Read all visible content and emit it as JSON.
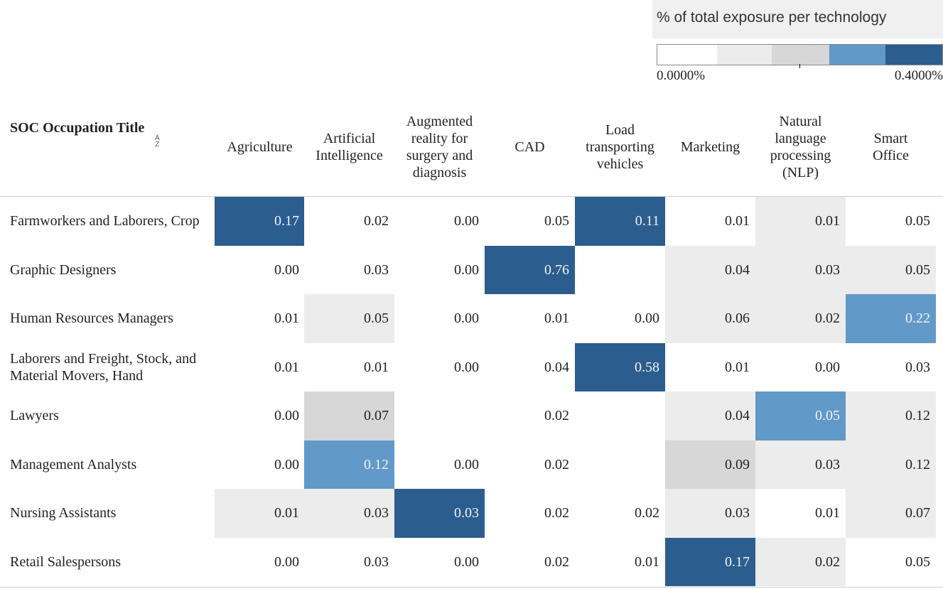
{
  "legend": {
    "title": "% of total exposure per technology",
    "min_label": "0.0000%",
    "max_label": "0.4000%",
    "colors": [
      "#ffffff",
      "#ececec",
      "#d7d7d7",
      "#6199c9",
      "#2b5d8f"
    ]
  },
  "header": {
    "soc_title": "SOC Occupation Title",
    "sort_icon": "sort-az-icon"
  },
  "chart_data": {
    "type": "heatmap",
    "title": "% of total exposure per technology",
    "columns": [
      "Agriculture",
      "Artificial Intelligence",
      "Augmented reality for surgery and diagnosis",
      "CAD",
      "Load transporting vehicles",
      "Marketing",
      "Natural language processing (NLP)",
      "Smart Office"
    ],
    "column_lines": [
      [
        "Agriculture"
      ],
      [
        "Artificial",
        "Intelligence"
      ],
      [
        "Augmented",
        "reality for",
        "surgery and",
        "diagnosis"
      ],
      [
        "CAD"
      ],
      [
        "Load",
        "transporting",
        "vehicles"
      ],
      [
        "Marketing"
      ],
      [
        "Natural",
        "language",
        "processing",
        "(NLP)"
      ],
      [
        "Smart",
        "Office"
      ]
    ],
    "rows": [
      "Farmworkers and Laborers, Crop",
      "Graphic Designers",
      "Human Resources Managers",
      "Laborers and Freight, Stock, and Material Movers, Hand",
      "Lawyers",
      "Management Analysts",
      "Nursing Assistants",
      "Retail Salespersons"
    ],
    "values": [
      [
        "0.17",
        "0.02",
        "0.00",
        "0.05",
        "0.11",
        "0.01",
        "0.01",
        "0.05"
      ],
      [
        "0.00",
        "0.03",
        "0.00",
        "0.76",
        "",
        "0.04",
        "0.03",
        "0.05"
      ],
      [
        "0.01",
        "0.05",
        "0.00",
        "0.01",
        "0.00",
        "0.06",
        "0.02",
        "0.22"
      ],
      [
        "0.01",
        "0.01",
        "0.00",
        "0.04",
        "0.58",
        "0.01",
        "0.00",
        "0.03"
      ],
      [
        "0.00",
        "0.07",
        "",
        "0.02",
        "",
        "0.04",
        "0.05",
        "0.12"
      ],
      [
        "0.00",
        "0.12",
        "0.00",
        "0.02",
        "",
        "0.09",
        "0.03",
        "0.12"
      ],
      [
        "0.01",
        "0.03",
        "0.03",
        "0.02",
        "0.02",
        "0.03",
        "0.01",
        "0.07"
      ],
      [
        "0.00",
        "0.03",
        "0.00",
        "0.02",
        "0.01",
        "0.17",
        "0.02",
        "0.05"
      ]
    ],
    "color_levels": [
      [
        4,
        0,
        0,
        0,
        4,
        0,
        1,
        0
      ],
      [
        0,
        0,
        0,
        4,
        0,
        1,
        1,
        1
      ],
      [
        0,
        1,
        0,
        0,
        0,
        1,
        1,
        3
      ],
      [
        0,
        0,
        0,
        0,
        4,
        0,
        0,
        0
      ],
      [
        0,
        2,
        0,
        0,
        0,
        1,
        3,
        1
      ],
      [
        0,
        3,
        0,
        0,
        0,
        2,
        1,
        1
      ],
      [
        1,
        1,
        4,
        0,
        0,
        1,
        0,
        1
      ],
      [
        0,
        0,
        0,
        0,
        0,
        4,
        1,
        0
      ]
    ],
    "scale_range": [
      0,
      0.4
    ]
  }
}
